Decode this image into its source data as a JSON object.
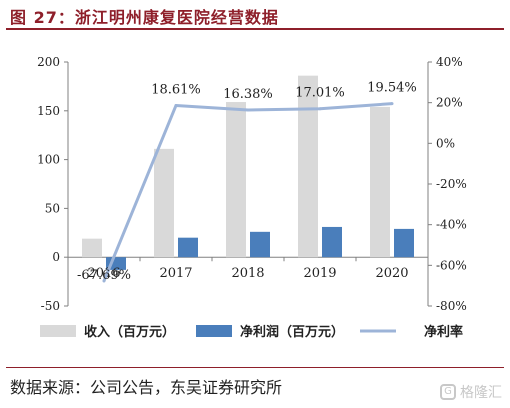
{
  "figure": {
    "title": "图 27：浙江明州康复医院经营数据",
    "source": "数据来源：公司公告，东吴证券研究所",
    "watermark": "格隆汇",
    "watermark_logo": "G"
  },
  "colors": {
    "title": "#8e1f2a",
    "revenue": "#d9d9d9",
    "profit": "#4a7ebb",
    "margin": "#9db4d8",
    "axis": "#808080"
  },
  "chart_data": {
    "type": "bar",
    "categories": [
      "2016",
      "2017",
      "2018",
      "2019",
      "2020"
    ],
    "series": [
      {
        "name": "收入（百万元）",
        "type": "bar",
        "axis": "left",
        "values": [
          19,
          111,
          159,
          186,
          154
        ]
      },
      {
        "name": "净利润（百万元）",
        "type": "bar",
        "axis": "left",
        "values": [
          -13,
          20,
          26,
          31,
          29
        ]
      },
      {
        "name": "净利率",
        "type": "line",
        "axis": "right",
        "values": [
          -67.69,
          18.61,
          16.38,
          17.01,
          19.54
        ]
      }
    ],
    "data_labels": [
      "-67.69%",
      "18.61%",
      "16.38%",
      "17.01%",
      "19.54%"
    ],
    "y_left": {
      "ylim": [
        -50,
        200
      ],
      "ticks": [
        "-50",
        "0",
        "50",
        "100",
        "150",
        "200"
      ]
    },
    "y_right": {
      "ylim": [
        -80,
        40
      ],
      "ticks": [
        "-80%",
        "-60%",
        "-40%",
        "-20%",
        "0%",
        "20%",
        "40%"
      ]
    },
    "legend_position": "bottom",
    "grid": false
  }
}
